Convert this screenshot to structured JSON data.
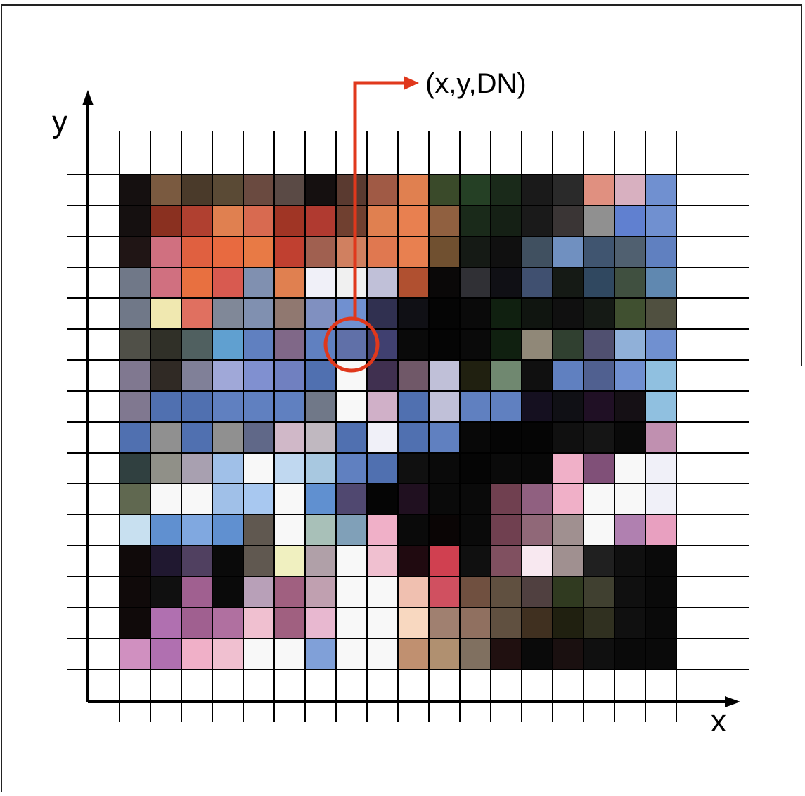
{
  "labels": {
    "y_axis": "y",
    "x_axis": "x",
    "pointer": "(x,y,DN)"
  }
}
